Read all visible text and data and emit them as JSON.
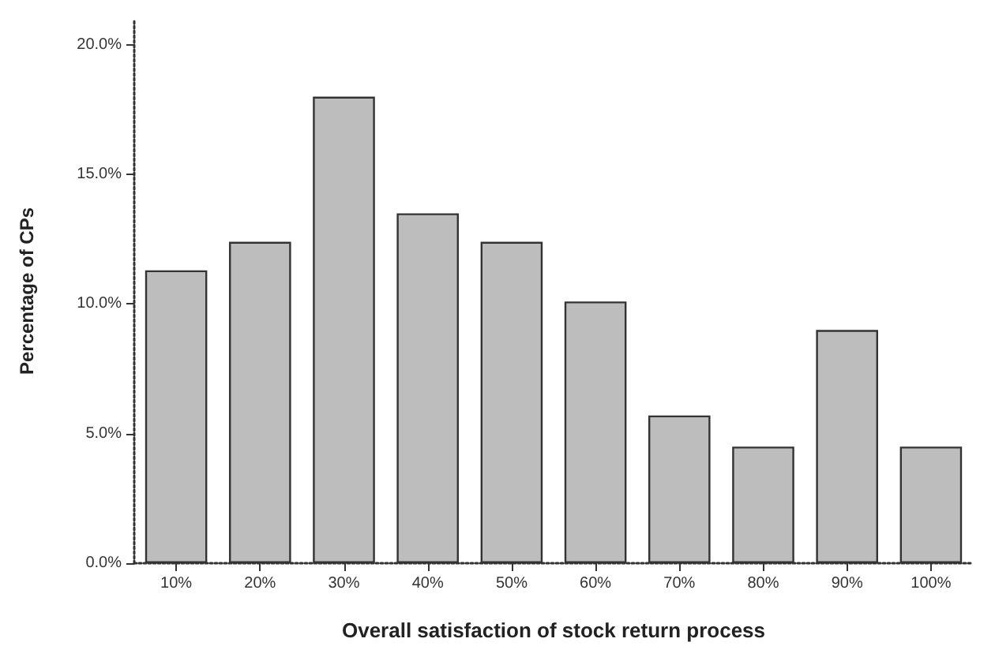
{
  "chart_data": {
    "type": "bar",
    "xlabel": "Overall satisfaction of stock return process",
    "ylabel": "Percentage of CPs",
    "categories": [
      "10%",
      "20%",
      "30%",
      "40%",
      "50%",
      "60%",
      "70%",
      "80%",
      "90%",
      "100%"
    ],
    "values": [
      11.3,
      12.4,
      18.0,
      13.5,
      12.4,
      10.1,
      5.7,
      4.5,
      9.0,
      4.5
    ],
    "color": "#bdbdbd",
    "ylim": [
      0,
      21
    ],
    "yticks": [
      {
        "value": 0,
        "label": "0.0%"
      },
      {
        "value": 5,
        "label": "5.0%"
      },
      {
        "value": 10,
        "label": "10.0%"
      },
      {
        "value": 15,
        "label": "15.0%"
      },
      {
        "value": 20,
        "label": "20.0%"
      }
    ],
    "grid": false
  }
}
